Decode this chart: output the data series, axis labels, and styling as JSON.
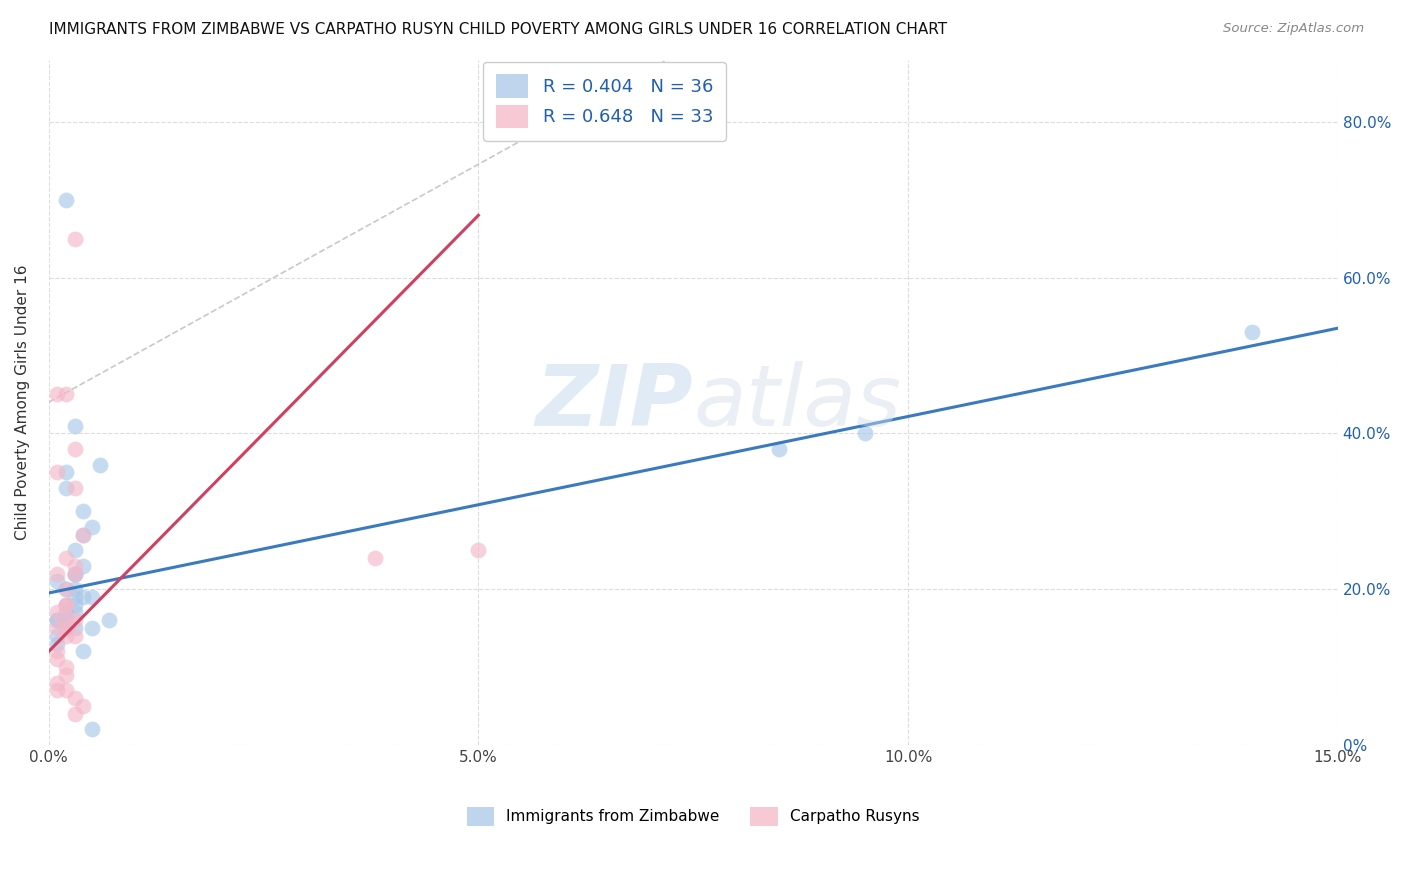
{
  "title": "IMMIGRANTS FROM ZIMBABWE VS CARPATHO RUSYN CHILD POVERTY AMONG GIRLS UNDER 16 CORRELATION CHART",
  "source": "Source: ZipAtlas.com",
  "ylabel": "Child Poverty Among Girls Under 16",
  "legend_label_1": "Immigrants from Zimbabwe",
  "legend_label_2": "Carpatho Rusyns",
  "legend_r1": "R = 0.404",
  "legend_n1": "N = 36",
  "legend_r2": "R = 0.648",
  "legend_n2": "N = 33",
  "color_blue": "#a8c8e8",
  "color_pink": "#f4b8c8",
  "color_blue_line": "#3a7abf",
  "color_pink_line": "#d04060",
  "color_text_blue": "#2060b0",
  "xmin": 0.0,
  "xmax": 0.15,
  "ymin": 0.0,
  "ymax": 0.88,
  "scatter_blue_x": [
    0.002,
    0.003,
    0.001,
    0.002,
    0.001,
    0.003,
    0.002,
    0.001,
    0.004,
    0.003,
    0.002,
    0.001,
    0.003,
    0.002,
    0.001,
    0.004,
    0.003,
    0.002,
    0.005,
    0.003,
    0.004,
    0.005,
    0.006,
    0.004,
    0.003,
    0.002,
    0.003,
    0.004,
    0.002,
    0.005,
    0.003,
    0.007,
    0.005,
    0.085,
    0.095,
    0.14
  ],
  "scatter_blue_y": [
    0.17,
    0.19,
    0.16,
    0.15,
    0.14,
    0.18,
    0.16,
    0.13,
    0.12,
    0.15,
    0.18,
    0.21,
    0.22,
    0.2,
    0.16,
    0.23,
    0.2,
    0.35,
    0.28,
    0.22,
    0.27,
    0.19,
    0.36,
    0.3,
    0.41,
    0.33,
    0.25,
    0.19,
    0.7,
    0.02,
    0.17,
    0.16,
    0.15,
    0.38,
    0.4,
    0.53
  ],
  "scatter_pink_x": [
    0.001,
    0.002,
    0.001,
    0.003,
    0.002,
    0.001,
    0.002,
    0.001,
    0.003,
    0.002,
    0.001,
    0.002,
    0.003,
    0.002,
    0.001,
    0.003,
    0.001,
    0.002,
    0.001,
    0.003,
    0.002,
    0.001,
    0.002,
    0.003,
    0.002,
    0.003,
    0.004,
    0.003,
    0.002,
    0.004,
    0.003,
    0.038,
    0.05
  ],
  "scatter_pink_y": [
    0.45,
    0.16,
    0.11,
    0.14,
    0.18,
    0.15,
    0.45,
    0.12,
    0.16,
    0.1,
    0.17,
    0.15,
    0.23,
    0.2,
    0.35,
    0.33,
    0.08,
    0.09,
    0.07,
    0.06,
    0.24,
    0.22,
    0.14,
    0.38,
    0.18,
    0.22,
    0.05,
    0.04,
    0.07,
    0.27,
    0.65,
    0.24,
    0.25
  ],
  "trend_blue_x0": 0.0,
  "trend_blue_y0": 0.195,
  "trend_blue_x1": 0.15,
  "trend_blue_y1": 0.535,
  "trend_pink_x0": 0.0,
  "trend_pink_y0": 0.12,
  "trend_pink_x1": 0.05,
  "trend_pink_y1": 0.68,
  "ref_line_x0": 0.0,
  "ref_line_y0": 0.44,
  "ref_line_x1": 0.072,
  "ref_line_y1": 0.88,
  "watermark_zip": "ZIP",
  "watermark_atlas": "atlas",
  "background_color": "#ffffff",
  "grid_color": "#dddddd"
}
